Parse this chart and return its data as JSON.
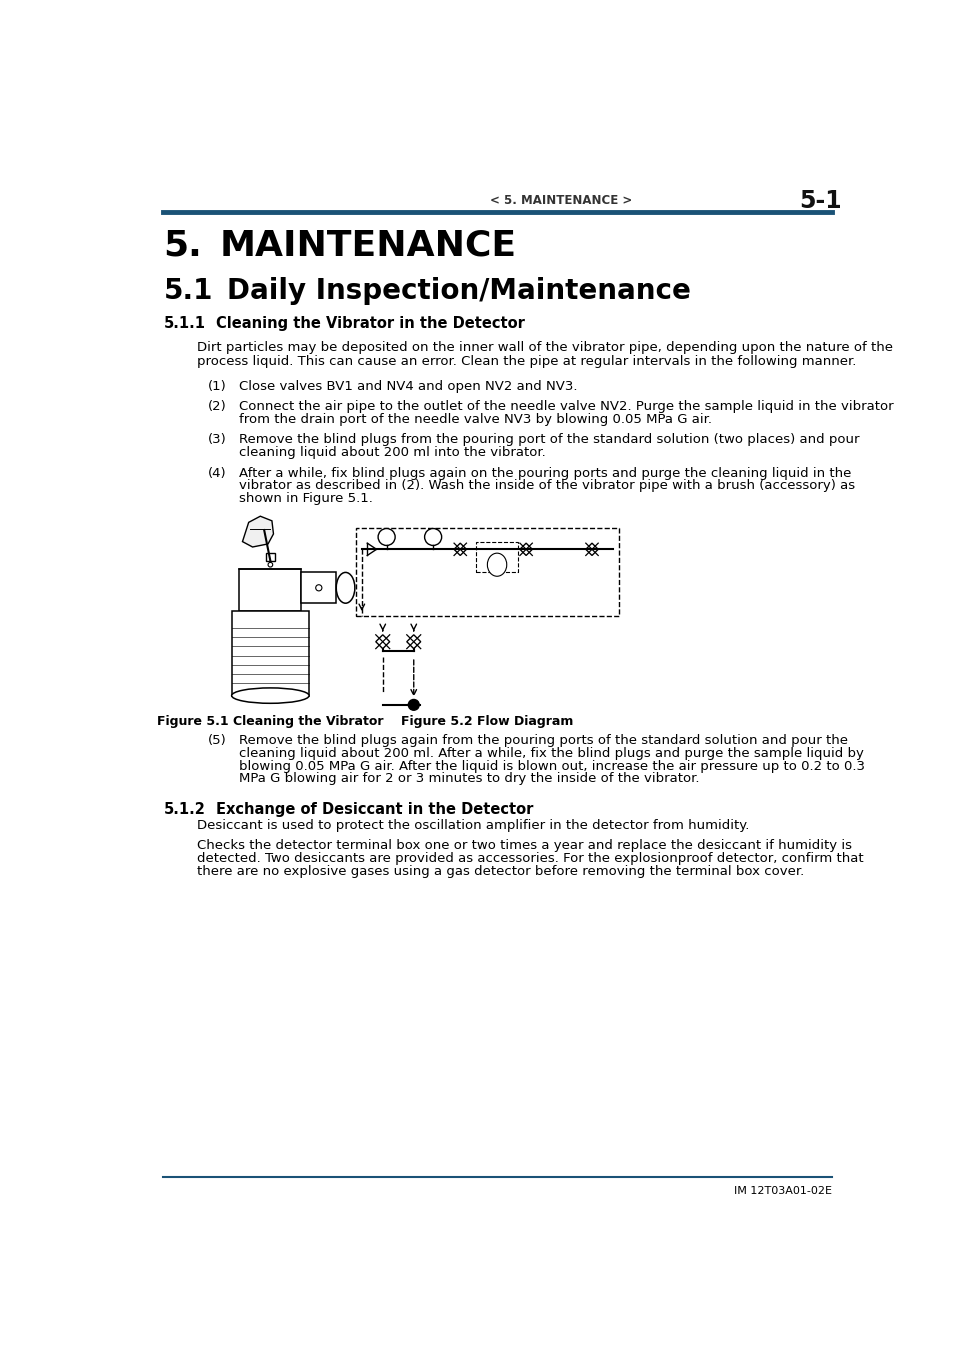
{
  "page_header_left": "< 5. MAINTENANCE >",
  "page_header_right": "5-1",
  "header_line_color": "#1a5276",
  "chapter_number": "5.",
  "chapter_title": "MAINTENANCE",
  "section_number": "5.1",
  "section_title": "Daily Inspection/Maintenance",
  "subsection1_number": "5.1.1",
  "subsection1_title": "Cleaning the Vibrator in the Detector",
  "subsection1_intro_line1": "Dirt particles may be deposited on the inner wall of the vibrator pipe, depending upon the nature of the",
  "subsection1_intro_line2": "process liquid. This can cause an error. Clean the pipe at regular intervals in the following manner.",
  "step1_num": "(1)",
  "step1_text": "Close valves BV1 and NV4 and open NV2 and NV3.",
  "step2_num": "(2)",
  "step2_line1": "Connect the air pipe to the outlet of the needle valve NV2. Purge the sample liquid in the vibrator",
  "step2_line2": "from the drain port of the needle valve NV3 by blowing 0.05 MPa G air.",
  "step3_num": "(3)",
  "step3_line1": "Remove the blind plugs from the pouring port of the standard solution (two places) and pour",
  "step3_line2": "cleaning liquid about 200 ml into the vibrator.",
  "step4_num": "(4)",
  "step4_line1": "After a while, fix blind plugs again on the pouring ports and purge the cleaning liquid in the",
  "step4_line2": "vibrator as described in (2). Wash the inside of the vibrator pipe with a brush (accessory) as",
  "step4_line3": "shown in Figure 5.1.",
  "fig1_caption": "Figure 5.1 Cleaning the Vibrator",
  "fig2_caption": "Figure 5.2 Flow Diagram",
  "step5_num": "(5)",
  "step5_line1": "Remove the blind plugs again from the pouring ports of the standard solution and pour the",
  "step5_line2": "cleaning liquid about 200 ml. After a while, fix the blind plugs and purge the sample liquid by",
  "step5_line3": "blowing 0.05 MPa G air. After the liquid is blown out, increase the air pressure up to 0.2 to 0.3",
  "step5_line4": "MPa G blowing air for 2 or 3 minutes to dry the inside of the vibrator.",
  "subsection2_number": "5.1.2",
  "subsection2_title": "Exchange of Desiccant in the Detector",
  "subsection2_para1": "Desiccant is used to protect the oscillation amplifier in the detector from humidity.",
  "subsection2_para2_line1": "Checks the detector terminal box one or two times a year and replace the desiccant if humidity is",
  "subsection2_para2_line2": "detected. Two desiccants are provided as accessories. For the explosionproof detector, confirm that",
  "subsection2_para2_line3": "there are no explosive gases using a gas detector before removing the terminal box cover.",
  "footer_line_color": "#1a5276",
  "footer_text": "IM 12T03A01-02E",
  "bg_color": "#ffffff",
  "text_color": "#000000",
  "blue_color": "#1a5276"
}
